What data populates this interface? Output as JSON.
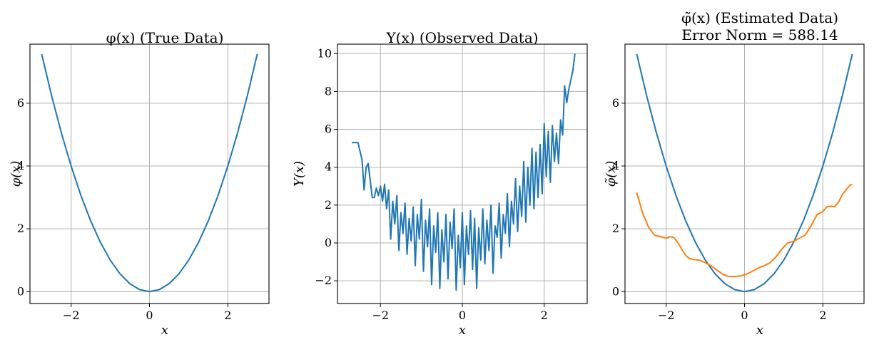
{
  "chart_data": [
    {
      "type": "line",
      "title": "φ(x) (True Data)",
      "xlabel": "x",
      "ylabel": "φ(x)",
      "xlim": [
        -3.05,
        3.05
      ],
      "ylim": [
        -0.38,
        7.88
      ],
      "xticks": [
        -2,
        0,
        2
      ],
      "xtick_labels": [
        "−2",
        "0",
        "2"
      ],
      "yticks": [
        0,
        2,
        4,
        6
      ],
      "ytick_labels": [
        "0",
        "2",
        "4",
        "6"
      ],
      "grid": true,
      "series": [
        {
          "color": "#1f77b4",
          "x": [
            -2.75,
            -2.5,
            -2.25,
            -2.0,
            -1.75,
            -1.5,
            -1.25,
            -1.0,
            -0.75,
            -0.5,
            -0.25,
            0.0,
            0.25,
            0.5,
            0.75,
            1.0,
            1.25,
            1.5,
            1.75,
            2.0,
            2.25,
            2.5,
            2.75
          ],
          "y": [
            7.5625,
            6.25,
            5.0625,
            4.0,
            3.0625,
            2.25,
            1.5625,
            1.0,
            0.5625,
            0.25,
            0.0625,
            0.0,
            0.0625,
            0.25,
            0.5625,
            1.0,
            1.5625,
            2.25,
            3.0625,
            4.0,
            5.0625,
            6.25,
            7.5625
          ]
        }
      ]
    },
    {
      "type": "line",
      "title": "Y(x) (Observed Data)",
      "xlabel": "x",
      "ylabel": "Y(x)",
      "xlim": [
        -3.05,
        3.05
      ],
      "ylim": [
        -3.2,
        10.5
      ],
      "xticks": [
        -2,
        0,
        2
      ],
      "xtick_labels": [
        "−2",
        "0",
        "2"
      ],
      "yticks": [
        -2,
        0,
        2,
        4,
        6,
        8,
        10
      ],
      "ytick_labels": [
        "−2",
        "0",
        "2",
        "4",
        "6",
        "8",
        "10"
      ],
      "grid": true,
      "series": [
        {
          "color": "#1f77b4",
          "x": [
            -2.7,
            -2.55,
            -2.45,
            -2.4,
            -2.35,
            -2.3,
            -2.25,
            -2.2,
            -2.15,
            -2.1,
            -2.05,
            -2.0,
            -1.95,
            -1.9,
            -1.85,
            -1.8,
            -1.75,
            -1.7,
            -1.65,
            -1.6,
            -1.55,
            -1.5,
            -1.45,
            -1.4,
            -1.35,
            -1.3,
            -1.25,
            -1.2,
            -1.15,
            -1.1,
            -1.05,
            -1.0,
            -0.95,
            -0.9,
            -0.85,
            -0.8,
            -0.75,
            -0.7,
            -0.65,
            -0.6,
            -0.55,
            -0.5,
            -0.45,
            -0.4,
            -0.35,
            -0.3,
            -0.25,
            -0.2,
            -0.15,
            -0.1,
            -0.05,
            0.0,
            0.05,
            0.1,
            0.15,
            0.2,
            0.25,
            0.3,
            0.35,
            0.4,
            0.45,
            0.5,
            0.55,
            0.6,
            0.65,
            0.7,
            0.75,
            0.8,
            0.85,
            0.9,
            0.95,
            1.0,
            1.05,
            1.1,
            1.15,
            1.2,
            1.25,
            1.3,
            1.35,
            1.4,
            1.45,
            1.5,
            1.55,
            1.6,
            1.65,
            1.7,
            1.75,
            1.8,
            1.85,
            1.9,
            1.95,
            2.0,
            2.05,
            2.1,
            2.15,
            2.2,
            2.25,
            2.3,
            2.35,
            2.4,
            2.45,
            2.5,
            2.55,
            2.6,
            2.65,
            2.7,
            2.75
          ],
          "y": [
            5.3,
            5.3,
            4.4,
            2.8,
            4.0,
            4.2,
            3.3,
            2.4,
            2.4,
            2.9,
            2.5,
            3.0,
            2.2,
            3.1,
            1.8,
            2.8,
            0.2,
            2.2,
            1.0,
            2.5,
            -0.4,
            1.6,
            0.5,
            2.1,
            -0.6,
            1.3,
            0.1,
            1.9,
            -1.2,
            1.5,
            0.2,
            2.3,
            -1.5,
            1.2,
            -0.2,
            1.8,
            -2.2,
            0.9,
            -0.5,
            1.6,
            -2.4,
            0.7,
            -1.0,
            1.5,
            -1.9,
            1.1,
            -0.3,
            1.8,
            -2.5,
            0.4,
            -1.3,
            1.6,
            -2.2,
            0.9,
            -0.6,
            1.7,
            -1.4,
            1.3,
            -2.4,
            0.8,
            -0.9,
            1.8,
            -1.1,
            1.2,
            -0.4,
            2.0,
            -1.6,
            0.9,
            0.3,
            2.1,
            -0.8,
            1.5,
            0.5,
            2.6,
            -0.2,
            2.2,
            1.0,
            3.4,
            0.6,
            3.0,
            1.4,
            4.3,
            1.1,
            4.0,
            2.0,
            5.0,
            1.8,
            4.8,
            2.4,
            5.2,
            2.6,
            6.3,
            3.5,
            5.9,
            3.2,
            6.2,
            4.3,
            5.8,
            4.2,
            6.5,
            5.7,
            8.3,
            7.4,
            8.1,
            8.6,
            9.1,
            10.0
          ]
        }
      ]
    },
    {
      "type": "line",
      "title": "φ̃(x) (Estimated Data)",
      "subtitle": "Error Norm = 588.14",
      "xlabel": "x",
      "ylabel": "φ̃(x)",
      "xlim": [
        -3.05,
        3.05
      ],
      "ylim": [
        -0.38,
        7.88
      ],
      "xticks": [
        -2,
        0,
        2
      ],
      "xtick_labels": [
        "−2",
        "0",
        "2"
      ],
      "yticks": [
        0,
        2,
        4,
        6
      ],
      "ytick_labels": [
        "0",
        "2",
        "4",
        "6"
      ],
      "grid": true,
      "series": [
        {
          "color": "#1f77b4",
          "x": [
            -2.75,
            -2.5,
            -2.25,
            -2.0,
            -1.75,
            -1.5,
            -1.25,
            -1.0,
            -0.75,
            -0.5,
            -0.25,
            0.0,
            0.25,
            0.5,
            0.75,
            1.0,
            1.25,
            1.5,
            1.75,
            2.0,
            2.25,
            2.5,
            2.75
          ],
          "y": [
            7.5625,
            6.25,
            5.0625,
            4.0,
            3.0625,
            2.25,
            1.5625,
            1.0,
            0.5625,
            0.25,
            0.0625,
            0.0,
            0.0625,
            0.25,
            0.5625,
            1.0,
            1.5625,
            2.25,
            3.0625,
            4.0,
            5.0625,
            6.25,
            7.5625
          ]
        },
        {
          "color": "#ff7f0e",
          "x": [
            -2.75,
            -2.6,
            -2.45,
            -2.3,
            -2.15,
            -2.0,
            -1.9,
            -1.8,
            -1.7,
            -1.6,
            -1.5,
            -1.4,
            -1.3,
            -1.15,
            -1.0,
            -0.85,
            -0.7,
            -0.55,
            -0.4,
            -0.25,
            -0.1,
            0.05,
            0.2,
            0.35,
            0.5,
            0.65,
            0.8,
            0.95,
            1.1,
            1.25,
            1.4,
            1.55,
            1.7,
            1.85,
            2.0,
            2.1,
            2.2,
            2.3,
            2.4,
            2.5,
            2.6,
            2.7,
            2.75
          ],
          "y": [
            3.15,
            2.5,
            2.05,
            1.8,
            1.75,
            1.7,
            1.75,
            1.72,
            1.55,
            1.35,
            1.15,
            1.05,
            1.02,
            1.0,
            0.92,
            0.82,
            0.68,
            0.55,
            0.48,
            0.48,
            0.5,
            0.55,
            0.65,
            0.75,
            0.82,
            0.92,
            1.1,
            1.35,
            1.55,
            1.6,
            1.7,
            1.8,
            2.1,
            2.45,
            2.55,
            2.7,
            2.72,
            2.7,
            2.85,
            3.1,
            3.25,
            3.4,
            3.4
          ]
        }
      ]
    }
  ]
}
